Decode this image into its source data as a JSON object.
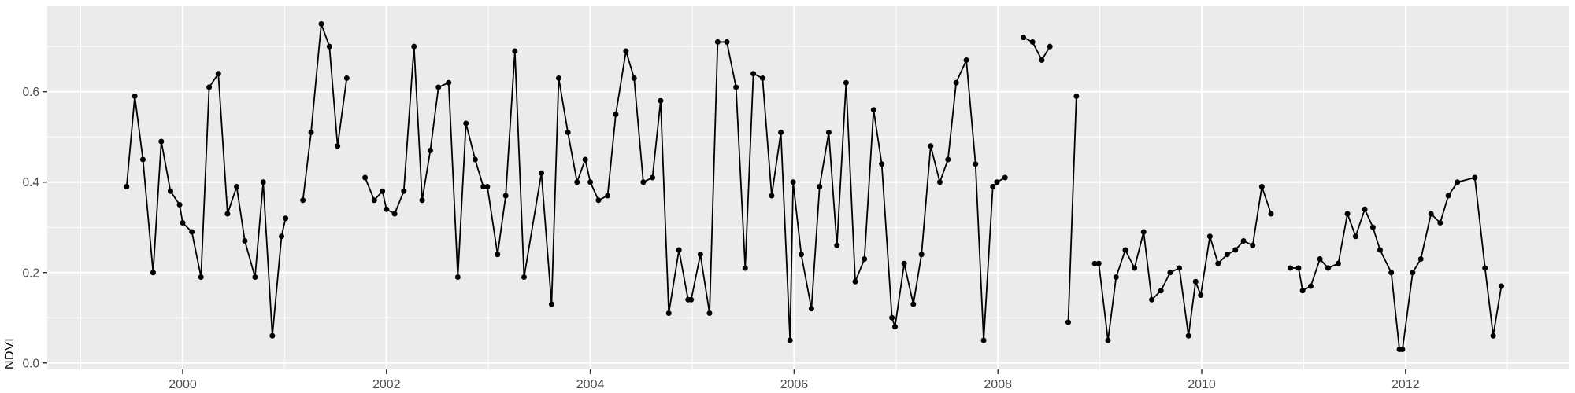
{
  "chart_data": {
    "type": "line",
    "title": "",
    "xlabel": "",
    "ylabel": "NDVI",
    "legend": false,
    "grid": true,
    "style": "ggplot2-grey-theme",
    "panel_bg": "#EBEBEB",
    "grid_color": "#FFFFFF",
    "line_color": "#000000",
    "point_color": "#000000",
    "tick_label_color": "#4D4D4D",
    "tick_mark_color": "#333333",
    "axis_title_color": "#000000",
    "xlim": [
      1998.671,
      2013.601
    ],
    "ylim": [
      -0.0143,
      0.789
    ],
    "x_ticks": [
      2000,
      2002,
      2004,
      2006,
      2008,
      2010,
      2012
    ],
    "x_tick_labels": [
      "2000",
      "2002",
      "2004",
      "2006",
      "2008",
      "2010",
      "2012"
    ],
    "x_minor_ticks": [
      1999,
      2001,
      2003,
      2005,
      2007,
      2009,
      2011,
      2013
    ],
    "y_ticks": [
      0.0,
      0.2,
      0.4,
      0.6
    ],
    "y_tick_labels": [
      "0.0",
      "0.2",
      "0.4",
      "0.6"
    ],
    "y_minor_ticks": [
      0.1,
      0.3,
      0.5,
      0.7
    ],
    "series_name": "NDVI",
    "segments": [
      [
        [
          1999.45,
          0.39
        ],
        [
          1999.53,
          0.59
        ],
        [
          1999.61,
          0.45
        ],
        [
          1999.71,
          0.2
        ],
        [
          1999.79,
          0.49
        ],
        [
          1999.88,
          0.38
        ],
        [
          1999.97,
          0.35
        ],
        [
          2000.0,
          0.31
        ],
        [
          2000.09,
          0.29
        ],
        [
          2000.18,
          0.19
        ],
        [
          2000.26,
          0.61
        ],
        [
          2000.35,
          0.64
        ],
        [
          2000.44,
          0.33
        ],
        [
          2000.53,
          0.39
        ],
        [
          2000.61,
          0.27
        ],
        [
          2000.71,
          0.19
        ],
        [
          2000.79,
          0.4
        ],
        [
          2000.88,
          0.06
        ],
        [
          2000.97,
          0.28
        ],
        [
          2001.01,
          0.32
        ]
      ],
      [
        [
          2001.18,
          0.36
        ],
        [
          2001.26,
          0.51
        ],
        [
          2001.36,
          0.75
        ],
        [
          2001.44,
          0.7
        ],
        [
          2001.52,
          0.48
        ],
        [
          2001.61,
          0.63
        ]
      ],
      [
        [
          2001.79,
          0.41
        ],
        [
          2001.88,
          0.36
        ],
        [
          2001.96,
          0.38
        ],
        [
          2002.0,
          0.34
        ],
        [
          2002.08,
          0.33
        ],
        [
          2002.17,
          0.38
        ],
        [
          2002.27,
          0.7
        ],
        [
          2002.35,
          0.36
        ],
        [
          2002.43,
          0.47
        ],
        [
          2002.51,
          0.61
        ],
        [
          2002.61,
          0.62
        ],
        [
          2002.7,
          0.19
        ],
        [
          2002.78,
          0.53
        ],
        [
          2002.87,
          0.45
        ],
        [
          2002.95,
          0.39
        ],
        [
          2002.99,
          0.39
        ],
        [
          2003.09,
          0.24
        ],
        [
          2003.17,
          0.37
        ],
        [
          2003.26,
          0.69
        ],
        [
          2003.35,
          0.19
        ],
        [
          2003.52,
          0.42
        ],
        [
          2003.62,
          0.13
        ],
        [
          2003.69,
          0.63
        ],
        [
          2003.78,
          0.51
        ],
        [
          2003.87,
          0.4
        ],
        [
          2003.95,
          0.45
        ],
        [
          2004.0,
          0.4
        ],
        [
          2004.08,
          0.36
        ],
        [
          2004.17,
          0.37
        ],
        [
          2004.25,
          0.55
        ],
        [
          2004.35,
          0.69
        ],
        [
          2004.43,
          0.63
        ],
        [
          2004.52,
          0.4
        ],
        [
          2004.61,
          0.41
        ],
        [
          2004.69,
          0.58
        ],
        [
          2004.77,
          0.11
        ],
        [
          2004.87,
          0.25
        ],
        [
          2004.96,
          0.14
        ],
        [
          2004.99,
          0.14
        ],
        [
          2005.08,
          0.24
        ],
        [
          2005.17,
          0.11
        ],
        [
          2005.25,
          0.71
        ],
        [
          2005.34,
          0.71
        ],
        [
          2005.43,
          0.61
        ],
        [
          2005.52,
          0.21
        ],
        [
          2005.6,
          0.64
        ],
        [
          2005.69,
          0.63
        ],
        [
          2005.78,
          0.37
        ],
        [
          2005.87,
          0.51
        ],
        [
          2005.96,
          0.05
        ],
        [
          2005.99,
          0.4
        ],
        [
          2006.07,
          0.24
        ],
        [
          2006.17,
          0.12
        ],
        [
          2006.25,
          0.39
        ],
        [
          2006.34,
          0.51
        ],
        [
          2006.42,
          0.26
        ],
        [
          2006.51,
          0.62
        ],
        [
          2006.6,
          0.18
        ],
        [
          2006.69,
          0.23
        ],
        [
          2006.78,
          0.56
        ],
        [
          2006.86,
          0.44
        ],
        [
          2006.96,
          0.1
        ],
        [
          2006.99,
          0.08
        ],
        [
          2007.08,
          0.22
        ],
        [
          2007.17,
          0.13
        ],
        [
          2007.25,
          0.24
        ],
        [
          2007.34,
          0.48
        ],
        [
          2007.43,
          0.4
        ],
        [
          2007.51,
          0.45
        ],
        [
          2007.59,
          0.62
        ],
        [
          2007.69,
          0.67
        ],
        [
          2007.78,
          0.44
        ],
        [
          2007.86,
          0.05
        ],
        [
          2007.95,
          0.39
        ],
        [
          2007.99,
          0.4
        ],
        [
          2008.07,
          0.41
        ]
      ],
      [
        [
          2008.25,
          0.72
        ],
        [
          2008.34,
          0.71
        ],
        [
          2008.43,
          0.67
        ],
        [
          2008.51,
          0.7
        ]
      ],
      [
        [
          2008.69,
          0.09
        ],
        [
          2008.77,
          0.59
        ]
      ],
      [
        [
          2008.95,
          0.22
        ],
        [
          2008.99,
          0.22
        ],
        [
          2009.08,
          0.05
        ],
        [
          2009.16,
          0.19
        ],
        [
          2009.25,
          0.25
        ],
        [
          2009.34,
          0.21
        ],
        [
          2009.43,
          0.29
        ],
        [
          2009.51,
          0.14
        ],
        [
          2009.6,
          0.16
        ],
        [
          2009.69,
          0.2
        ],
        [
          2009.78,
          0.21
        ],
        [
          2009.87,
          0.06
        ],
        [
          2009.94,
          0.18
        ],
        [
          2009.99,
          0.15
        ],
        [
          2010.08,
          0.28
        ],
        [
          2010.16,
          0.22
        ],
        [
          2010.25,
          0.24
        ],
        [
          2010.33,
          0.25
        ],
        [
          2010.41,
          0.27
        ],
        [
          2010.5,
          0.26
        ],
        [
          2010.59,
          0.39
        ],
        [
          2010.68,
          0.33
        ]
      ],
      [
        [
          2010.87,
          0.21
        ],
        [
          2010.95,
          0.21
        ],
        [
          2010.99,
          0.16
        ],
        [
          2011.07,
          0.17
        ],
        [
          2011.16,
          0.23
        ],
        [
          2011.24,
          0.21
        ],
        [
          2011.34,
          0.22
        ],
        [
          2011.43,
          0.33
        ],
        [
          2011.51,
          0.28
        ],
        [
          2011.6,
          0.34
        ],
        [
          2011.68,
          0.3
        ],
        [
          2011.75,
          0.25
        ],
        [
          2011.86,
          0.2
        ],
        [
          2011.94,
          0.03
        ],
        [
          2011.97,
          0.03
        ],
        [
          2012.07,
          0.2
        ],
        [
          2012.15,
          0.23
        ],
        [
          2012.25,
          0.33
        ],
        [
          2012.34,
          0.31
        ],
        [
          2012.42,
          0.37
        ],
        [
          2012.51,
          0.4
        ],
        [
          2012.68,
          0.41
        ],
        [
          2012.78,
          0.21
        ],
        [
          2012.86,
          0.06
        ],
        [
          2012.94,
          0.17
        ]
      ]
    ]
  }
}
